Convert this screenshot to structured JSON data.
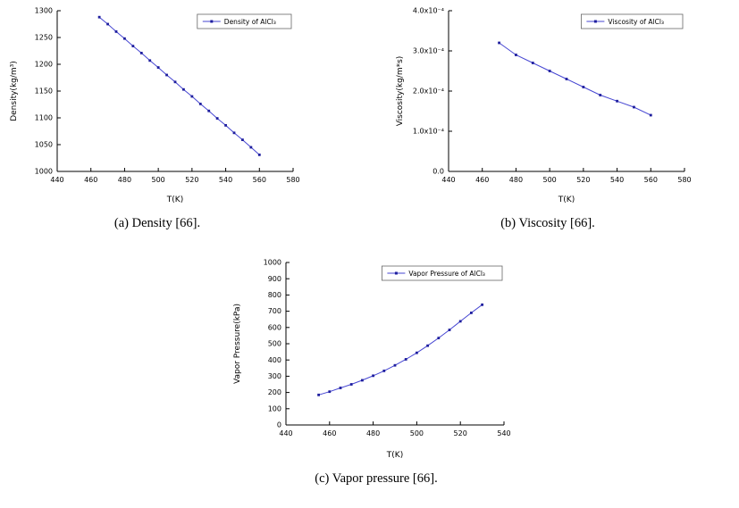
{
  "page": {
    "background": "#ffffff"
  },
  "colors": {
    "line": "#4646d2",
    "marker": "#1e1e9e",
    "axis": "#000000",
    "legend_border": "#666666"
  },
  "captions": [
    "(a) Density [66].",
    "(b) Viscosity [66].",
    "(c) Vapor pressure [66]."
  ],
  "chart_data": [
    {
      "type": "line",
      "legend": "Density of AlCl₃",
      "xlabel": "T(K)",
      "ylabel": "Density(kg/m³)",
      "xlim": [
        440,
        580
      ],
      "ylim": [
        1000,
        1300
      ],
      "xticks": [
        440,
        460,
        480,
        500,
        520,
        540,
        560,
        580
      ],
      "xtick_labels": [
        "440",
        "460",
        "480",
        "500",
        "520",
        "540",
        "560",
        "580"
      ],
      "yticks": [
        1000,
        1050,
        1100,
        1150,
        1200,
        1250,
        1300
      ],
      "ytick_labels": [
        "1000",
        "1050",
        "1100",
        "1150",
        "1200",
        "1250",
        "1300"
      ],
      "x": [
        465,
        470,
        475,
        480,
        485,
        490,
        495,
        500,
        505,
        510,
        515,
        520,
        525,
        530,
        535,
        540,
        545,
        550,
        555,
        560
      ],
      "y": [
        1288,
        1275,
        1261,
        1248,
        1234,
        1221,
        1207,
        1194,
        1180,
        1167,
        1153,
        1140,
        1126,
        1113,
        1099,
        1086,
        1072,
        1059,
        1045,
        1031
      ],
      "grid": false,
      "legend_position": "top-right"
    },
    {
      "type": "line",
      "legend": "Viscosity of AlCl₃",
      "xlabel": "T(K)",
      "ylabel": "Viscosity(kg/m*s)",
      "xlim": [
        440,
        580
      ],
      "ylim": [
        0,
        0.0004
      ],
      "xticks": [
        440,
        460,
        480,
        500,
        520,
        540,
        560,
        580
      ],
      "xtick_labels": [
        "440",
        "460",
        "480",
        "500",
        "520",
        "540",
        "560",
        "580"
      ],
      "yticks": [
        0,
        0.0001,
        0.0002,
        0.0003,
        0.0004
      ],
      "ytick_labels": [
        "0.0",
        "1.0x10⁻⁴",
        "2.0x10⁻⁴",
        "3.0x10⁻⁴",
        "4.0x10⁻⁴"
      ],
      "x": [
        470,
        480,
        490,
        500,
        510,
        520,
        530,
        540,
        550,
        560
      ],
      "y": [
        0.00032,
        0.00029,
        0.00027,
        0.00025,
        0.00023,
        0.00021,
        0.00019,
        0.000175,
        0.00016,
        0.00014
      ],
      "grid": false,
      "legend_position": "top-right"
    },
    {
      "type": "line",
      "legend": "Vapor Pressure of AlCl₃",
      "xlabel": "T(K)",
      "ylabel": "Vapor Pressure(kPa)",
      "xlim": [
        440,
        540
      ],
      "ylim": [
        0,
        1000
      ],
      "xticks": [
        440,
        460,
        480,
        500,
        520,
        540
      ],
      "xtick_labels": [
        "440",
        "460",
        "480",
        "500",
        "520",
        "540"
      ],
      "yticks": [
        0,
        100,
        200,
        300,
        400,
        500,
        600,
        700,
        800,
        900,
        1000
      ],
      "ytick_labels": [
        "0",
        "100",
        "200",
        "300",
        "400",
        "500",
        "600",
        "700",
        "800",
        "900",
        "1000"
      ],
      "x": [
        455,
        460,
        465,
        470,
        475,
        480,
        485,
        490,
        495,
        500,
        505,
        510,
        515,
        520,
        525,
        530
      ],
      "y": [
        185,
        205,
        228,
        250,
        275,
        303,
        333,
        367,
        404,
        444,
        488,
        535,
        585,
        638,
        690,
        740
      ],
      "grid": false,
      "legend_position": "top-right"
    }
  ]
}
